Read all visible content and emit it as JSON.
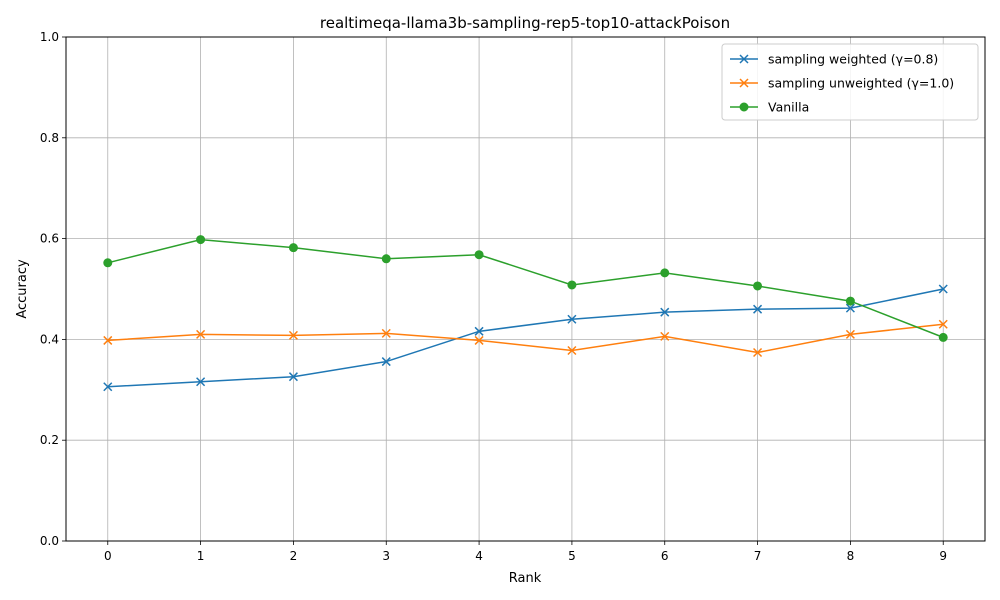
{
  "chart_data": {
    "type": "line",
    "title": "realtimeqa-llama3b-sampling-rep5-top10-attackPoison",
    "xlabel": "Rank",
    "ylabel": "Accuracy",
    "x": [
      0,
      1,
      2,
      3,
      4,
      5,
      6,
      7,
      8,
      9
    ],
    "xticks": [
      "0",
      "1",
      "2",
      "3",
      "4",
      "5",
      "6",
      "7",
      "8",
      "9"
    ],
    "xlim": [
      -0.45,
      9.45
    ],
    "ylim": [
      0.0,
      1.0
    ],
    "yticks": [
      "0.0",
      "0.2",
      "0.4",
      "0.6",
      "0.8",
      "1.0"
    ],
    "grid": true,
    "legend_position": "top-right",
    "series": [
      {
        "name": "sampling weighted (γ=0.8)",
        "color": "#1f77b4",
        "marker": "x",
        "values": [
          0.306,
          0.316,
          0.326,
          0.356,
          0.416,
          0.44,
          0.454,
          0.46,
          0.462,
          0.5
        ]
      },
      {
        "name": "sampling unweighted (γ=1.0)",
        "color": "#ff7f0e",
        "marker": "x",
        "values": [
          0.398,
          0.41,
          0.408,
          0.412,
          0.398,
          0.378,
          0.406,
          0.374,
          0.41,
          0.43
        ]
      },
      {
        "name": "Vanilla",
        "color": "#2ca02c",
        "marker": "circle",
        "values": [
          0.552,
          0.598,
          0.582,
          0.56,
          0.568,
          0.508,
          0.532,
          0.506,
          0.476,
          0.404
        ]
      }
    ]
  }
}
